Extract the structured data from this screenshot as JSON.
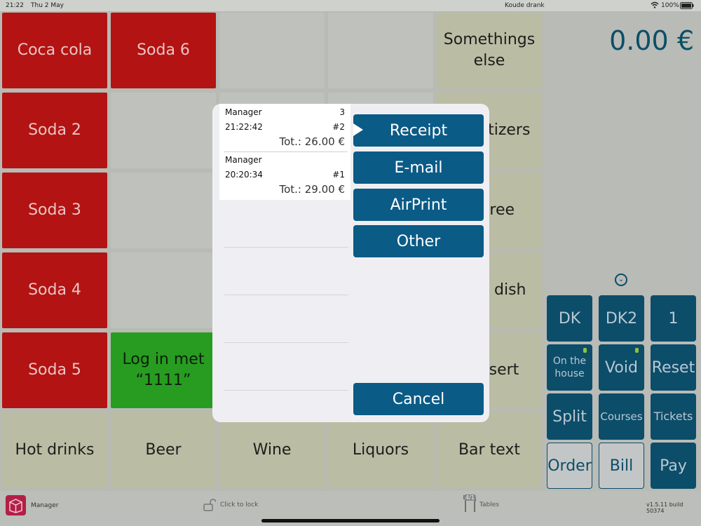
{
  "status_bar": {
    "time": "21:22",
    "date": "Thu 2 May",
    "category": "Koude drank",
    "battery": "100%"
  },
  "grid": {
    "row1": [
      "Coca cola",
      "Soda 6",
      "",
      "",
      "Somethings else"
    ],
    "row2": [
      "Soda 2",
      "",
      "",
      "",
      "Appetizers"
    ],
    "row3": [
      "Soda 3",
      "",
      "",
      "",
      "Entree"
    ],
    "row4": [
      "Soda 4",
      "",
      "",
      "",
      "Main dish"
    ],
    "row5": [
      "Soda 5",
      "Log in met “1111”",
      "",
      "",
      "Dessert"
    ],
    "row6": [
      "Hot drinks",
      "Beer",
      "Wine",
      "Liquors",
      "Bar text"
    ]
  },
  "right_panel": {
    "total": "0.00 €",
    "buttons": {
      "dk": "DK",
      "dk2": "DK2",
      "one": "1",
      "on_the_house": "On the house",
      "void": "Void",
      "reset": "Reset",
      "split": "Split",
      "courses": "Courses",
      "tickets": "Tickets",
      "order": "Order",
      "bill": "Bill",
      "pay": "Pay"
    }
  },
  "modal": {
    "receipts": [
      {
        "user": "Manager",
        "count": "3",
        "time": "21:22:42",
        "number": "#2",
        "total": "Tot.: 26.00 €"
      },
      {
        "user": "Manager",
        "time": "20:20:34",
        "number": "#1",
        "total": "Tot.: 29.00 €"
      }
    ],
    "actions": {
      "receipt": "Receipt",
      "email": "E-mail",
      "airprint": "AirPrint",
      "other": "Other"
    },
    "cancel": "Cancel"
  },
  "bottom_bar": {
    "user": "Manager",
    "lock": "Click to lock",
    "tables_badge": "4/1",
    "tables": "Tables",
    "version": "v1.5.11 build 50374"
  },
  "colors": {
    "red_tile": "#b31313",
    "sage_tile": "#babda3",
    "green_tile": "#279c21",
    "accent": "#0b5b87"
  },
  "icons": [
    "wifi-icon",
    "battery-icon",
    "app-logo-icon",
    "lock-icon",
    "tables-icon",
    "chevron-down-icon",
    "disclosure-arrow-icon"
  ]
}
